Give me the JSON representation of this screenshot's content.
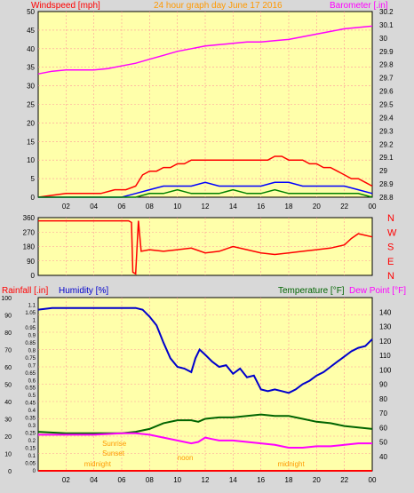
{
  "colors": {
    "background": "#d8d8d8",
    "plot_bg": "#ffffaa",
    "grid": "#ff9999",
    "wind_speed": "#ff0000",
    "wind_avg": "#0000ff",
    "wind_low": "#008000",
    "barometer": "#ff00ff",
    "direction": "#ff0000",
    "humidity": "#0000cc",
    "temperature": "#006400",
    "dew_point": "#ff00ff",
    "rainfall": "#ff0000",
    "axis_text": "#000000",
    "label_orange": "#ff9900"
  },
  "chart_data": [
    {
      "type": "line",
      "name": "wind_barometer",
      "title": "24 hour graph day   June 17 2016",
      "ylabel_left": "Windspeed [mph]",
      "ylabel_right": "Barometer [.in]",
      "ylim_left": [
        0,
        50
      ],
      "yticks_left": [
        "0",
        "5",
        "10",
        "15",
        "20",
        "25",
        "30",
        "35",
        "40",
        "45",
        "50"
      ],
      "ylim_right": [
        28.8,
        30.2
      ],
      "yticks_right": [
        "28.8",
        "28.9",
        "29",
        "29.1",
        "29.2",
        "29.3",
        "29.4",
        "29.5",
        "29.6",
        "29.7",
        "29.8",
        "29.9",
        "30",
        "30.1",
        "30.2"
      ],
      "xlim": [
        0,
        24
      ],
      "xticks": [
        "02",
        "04",
        "06",
        "08",
        "10",
        "12",
        "14",
        "16",
        "18",
        "20",
        "22",
        "00"
      ],
      "grid": true,
      "barometer": {
        "x": [
          0,
          1,
          2,
          3,
          4,
          5,
          6,
          7,
          8,
          9,
          10,
          11,
          12,
          13,
          14,
          15,
          16,
          17,
          18,
          19,
          20,
          21,
          22,
          23,
          24
        ],
        "y": [
          29.73,
          29.75,
          29.76,
          29.76,
          29.76,
          29.77,
          29.79,
          29.81,
          29.84,
          29.87,
          29.9,
          29.92,
          29.94,
          29.95,
          29.96,
          29.97,
          29.97,
          29.98,
          29.99,
          30.01,
          30.03,
          30.05,
          30.07,
          30.08,
          30.09
        ]
      },
      "wind_gust": {
        "x": [
          0,
          2,
          3.5,
          4.5,
          5.5,
          6.3,
          7,
          7.5,
          8,
          8.5,
          9,
          9.5,
          10,
          10.5,
          11,
          11.5,
          12,
          12.5,
          13,
          13.5,
          14,
          14.5,
          15,
          15.5,
          16,
          16.5,
          17,
          17.5,
          18,
          18.5,
          19,
          19.5,
          20,
          20.5,
          21,
          21.5,
          22,
          22.5,
          23,
          23.5,
          24
        ],
        "y": [
          0,
          1,
          1,
          1,
          2,
          2,
          3,
          6,
          7,
          7,
          8,
          8,
          9,
          9,
          10,
          10,
          10,
          10,
          10,
          10,
          10,
          10,
          10,
          10,
          10,
          10,
          11,
          11,
          10,
          10,
          10,
          9,
          9,
          8,
          8,
          7,
          6,
          5,
          5,
          4,
          3
        ]
      },
      "wind_avg": {
        "x": [
          0,
          6,
          7,
          8,
          9,
          10,
          11,
          12,
          13,
          14,
          15,
          16,
          17,
          18,
          19,
          20,
          21,
          22,
          23,
          24
        ],
        "y": [
          0,
          0,
          1,
          2,
          3,
          3,
          3,
          4,
          3,
          3,
          3,
          3,
          4,
          4,
          3,
          3,
          3,
          3,
          2,
          1
        ]
      },
      "wind_low": {
        "x": [
          0,
          6,
          7,
          8,
          9,
          10,
          11,
          12,
          13,
          14,
          15,
          16,
          17,
          18,
          19,
          20,
          21,
          22,
          23,
          24
        ],
        "y": [
          0,
          0,
          0,
          1,
          1,
          2,
          1,
          1,
          1,
          2,
          1,
          1,
          2,
          1,
          1,
          1,
          1,
          1,
          1,
          0
        ]
      }
    },
    {
      "type": "line",
      "name": "wind_direction",
      "ylim": [
        0,
        360
      ],
      "yticks": [
        "0",
        "90",
        "180",
        "270",
        "360"
      ],
      "compass": [
        "N",
        "W",
        "S",
        "E",
        "N"
      ],
      "xlim": [
        0,
        24
      ],
      "direction": {
        "x": [
          0,
          6.5,
          6.7,
          6.8,
          7,
          7.2,
          7.4,
          8,
          9,
          10,
          11,
          12,
          13,
          14,
          15,
          16,
          17,
          18,
          19,
          20,
          21,
          22,
          22.5,
          23,
          24
        ],
        "y": [
          340,
          340,
          330,
          20,
          10,
          340,
          150,
          160,
          150,
          160,
          170,
          140,
          150,
          180,
          160,
          140,
          130,
          140,
          150,
          160,
          170,
          190,
          230,
          260,
          240
        ]
      }
    },
    {
      "type": "line",
      "name": "humidity_temp_rain",
      "ylabel_left_rain": "Rainfall [.in]",
      "ylabel_left_hum": "Humidity [%]",
      "ylabel_right_temp": "Temperature [°F]",
      "ylabel_right_dew": "Dew Point [°F]",
      "ylim_humidity": [
        0,
        100
      ],
      "yticks_humidity": [
        "0",
        "10",
        "20",
        "30",
        "40",
        "50",
        "60",
        "70",
        "80",
        "90",
        "100"
      ],
      "ylim_rain": [
        0,
        1.15
      ],
      "yticks_rain": [
        "0",
        "0.05",
        "0.1",
        "0.15",
        "0.2",
        "0.25",
        "0.3",
        "0.35",
        "0.4",
        "0.45",
        "0.5",
        "0.55",
        "0.6",
        "0.65",
        "0.7",
        "0.75",
        "0.8",
        "0.85",
        "0.9",
        "0.95",
        "1",
        "1.05",
        "1.1"
      ],
      "ylim_temp": [
        30,
        150
      ],
      "yticks_temp": [
        "40",
        "50",
        "60",
        "70",
        "80",
        "90",
        "100",
        "110",
        "120",
        "130",
        "140"
      ],
      "xlim": [
        0,
        24
      ],
      "xticks": [
        "02",
        "04",
        "06",
        "08",
        "10",
        "12",
        "14",
        "16",
        "18",
        "20",
        "22",
        "00"
      ],
      "annotations": [
        "Sunrise",
        "Sunset",
        "midnight",
        "noon",
        "midnight"
      ],
      "humidity": {
        "x": [
          0,
          1,
          2,
          3,
          4,
          5,
          6,
          7,
          7.5,
          8,
          8.5,
          9,
          9.5,
          10,
          10.5,
          11,
          11.3,
          11.6,
          12,
          12.5,
          13,
          13.5,
          14,
          14.5,
          15,
          15.5,
          16,
          16.5,
          17,
          17.5,
          18,
          18.5,
          19,
          19.5,
          20,
          20.5,
          21,
          21.5,
          22,
          22.5,
          23,
          23.5,
          24
        ],
        "y": [
          93,
          94,
          94,
          94,
          94,
          94,
          94,
          94,
          93,
          89,
          84,
          74,
          65,
          60,
          59,
          57,
          65,
          70,
          67,
          63,
          60,
          61,
          56,
          59,
          54,
          55,
          47,
          46,
          47,
          46,
          45,
          47,
          50,
          52,
          55,
          57,
          60,
          63,
          66,
          69,
          71,
          72,
          76
        ]
      },
      "temperature": {
        "x": [
          0,
          2,
          4,
          6,
          7,
          8,
          9,
          10,
          11,
          11.5,
          12,
          13,
          14,
          15,
          16,
          17,
          18,
          19,
          20,
          21,
          22,
          23,
          24
        ],
        "y": [
          57,
          56,
          56,
          56,
          57,
          59,
          63,
          65,
          65,
          64,
          66,
          67,
          67,
          68,
          69,
          68,
          68,
          66,
          64,
          63,
          61,
          60,
          59
        ]
      },
      "dew_point": {
        "x": [
          0,
          2,
          4,
          6,
          7,
          8,
          9,
          10,
          11,
          11.5,
          12,
          12.5,
          13,
          14,
          15,
          16,
          17,
          18,
          19,
          20,
          21,
          22,
          23,
          24
        ],
        "y": [
          55,
          55,
          55,
          56,
          56,
          55,
          53,
          51,
          49,
          50,
          53,
          52,
          51,
          51,
          50,
          49,
          48,
          46,
          46,
          47,
          47,
          48,
          49,
          49
        ]
      },
      "rainfall": {
        "x": [
          0,
          24
        ],
        "y": [
          0,
          0
        ]
      }
    }
  ]
}
